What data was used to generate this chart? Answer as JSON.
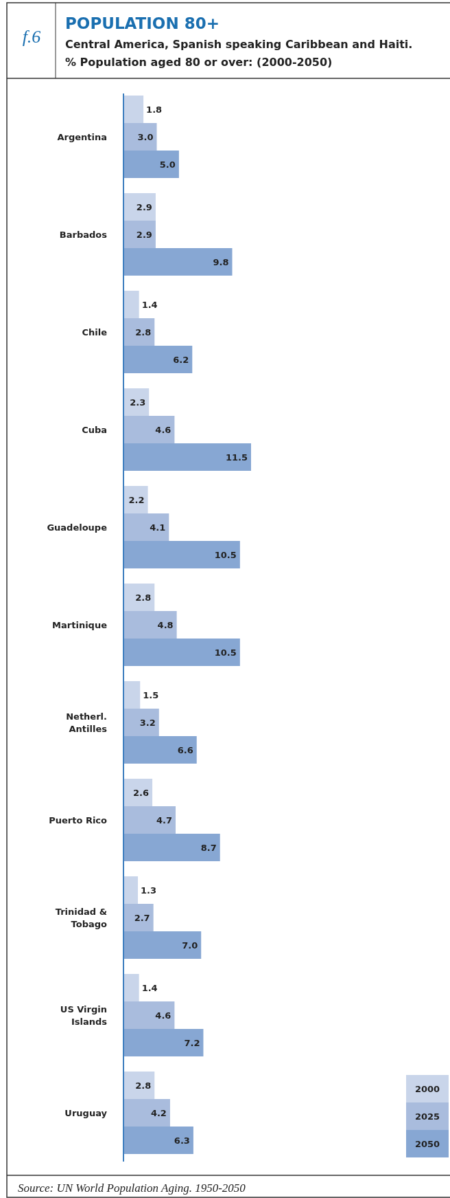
{
  "chart_data": {
    "type": "bar",
    "orientation": "horizontal",
    "title": "POPULATION 80+",
    "subtitle": "Central America, Spanish speaking Caribbean and Haiti.\n% Population aged 80 or over: (2000-2050)",
    "annotations": [
      "f.6",
      "Source: UN World Population Aging. 1950-2050"
    ],
    "categories": [
      "Argentina",
      "Barbados",
      "Chile",
      "Cuba",
      "Guadeloupe",
      "Martinique",
      "Netherl. Antilles",
      "Puerto Rico",
      "Trinidad & Tobago",
      "US Virgin Islands",
      "Uruguay"
    ],
    "series": [
      {
        "name": "2000",
        "color": "#c9d5ea",
        "values": [
          1.8,
          2.9,
          1.4,
          2.3,
          2.2,
          2.8,
          1.5,
          2.6,
          1.3,
          1.4,
          2.8
        ],
        "value_labels": [
          "1.8",
          "2.9",
          "1.4",
          "2.3",
          "2.2",
          "2.8",
          "1.5",
          "2.6",
          "1.3",
          "1.4",
          "2.8"
        ]
      },
      {
        "name": "2025",
        "color": "#a9bcdd",
        "values": [
          3.0,
          2.9,
          2.8,
          4.6,
          4.1,
          4.8,
          3.2,
          4.7,
          2.7,
          4.6,
          4.2
        ],
        "value_labels": [
          "3.0",
          "2.9",
          "2.8",
          "4.6",
          "4.1",
          "4.8",
          "3.2",
          "4.7",
          "2.7",
          "4.6",
          "4.2"
        ]
      },
      {
        "name": "2050",
        "color": "#87a7d3",
        "values": [
          5.0,
          9.8,
          6.2,
          11.5,
          10.5,
          10.5,
          6.6,
          8.7,
          7.0,
          7.2,
          6.3
        ],
        "value_labels": [
          "5.0",
          "9.8",
          "6.2",
          "11.5",
          "10.5",
          "10.5",
          "6.6",
          "8.7",
          "7.0",
          "7.2",
          "6.3"
        ]
      }
    ],
    "legend": "bottom right"
  }
}
